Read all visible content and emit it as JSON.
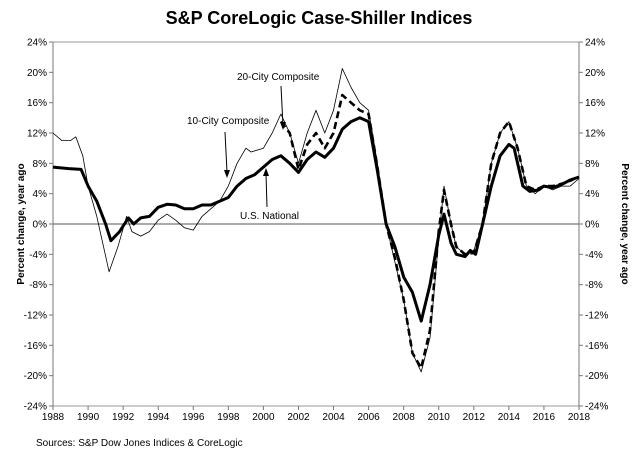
{
  "chart_data": {
    "type": "line",
    "title": "S&P CoreLogic Case-Shiller Indices",
    "ylabel_left": "Percent change, year ago",
    "ylabel_right": "Percent change, year ago",
    "source": "Sources: S&P Dow Jones Indices & CoreLogic",
    "xlim": [
      1988,
      2018
    ],
    "ylim": [
      -24,
      24
    ],
    "x_ticks": [
      "1988",
      "1990",
      "1992",
      "1994",
      "1996",
      "1998",
      "2000",
      "2002",
      "2004",
      "2006",
      "2008",
      "2010",
      "2012",
      "2014",
      "2016",
      "2018"
    ],
    "y_ticks": [
      "24%",
      "20%",
      "16%",
      "12%",
      "8%",
      "4%",
      "0%",
      "-4%",
      "-8%",
      "-12%",
      "-16%",
      "-20%",
      "-24%"
    ],
    "grid": false,
    "annotations": [
      "20-City Composite",
      "10-City Composite",
      "U.S. National"
    ],
    "series": [
      {
        "name": "U.S. National",
        "style": "thick-solid",
        "points": [
          [
            1988,
            7.5
          ],
          [
            1988.9,
            7.3
          ],
          [
            1989.6,
            7.2
          ],
          [
            1990,
            5
          ],
          [
            1990.5,
            3
          ],
          [
            1991,
            0
          ],
          [
            1991.3,
            -2.2
          ],
          [
            1991.8,
            -1
          ],
          [
            1992.3,
            0.8
          ],
          [
            1992.6,
            0
          ],
          [
            1993,
            0.8
          ],
          [
            1993.5,
            1
          ],
          [
            1994,
            2.2
          ],
          [
            1994.5,
            2.6
          ],
          [
            1995,
            2.5
          ],
          [
            1995.5,
            2
          ],
          [
            1996,
            2
          ],
          [
            1996.5,
            2.5
          ],
          [
            1997,
            2.5
          ],
          [
            1997.5,
            3
          ],
          [
            1998,
            3.5
          ],
          [
            1998.5,
            5
          ],
          [
            1999,
            6
          ],
          [
            1999.5,
            6.5
          ],
          [
            2000,
            7.5
          ],
          [
            2000.5,
            8.5
          ],
          [
            2001,
            9
          ],
          [
            2001.5,
            8
          ],
          [
            2002,
            6.8
          ],
          [
            2002.5,
            8.5
          ],
          [
            2003,
            9.5
          ],
          [
            2003.5,
            8.8
          ],
          [
            2004,
            10
          ],
          [
            2004.5,
            12.5
          ],
          [
            2005,
            13.5
          ],
          [
            2005.5,
            14
          ],
          [
            2006,
            13.5
          ],
          [
            2006.5,
            7
          ],
          [
            2007,
            0
          ],
          [
            2007.5,
            -3
          ],
          [
            2008,
            -7
          ],
          [
            2008.5,
            -9
          ],
          [
            2009,
            -12.8
          ],
          [
            2009.5,
            -8
          ],
          [
            2010,
            -1.5
          ],
          [
            2010.3,
            1.3
          ],
          [
            2010.7,
            -2.5
          ],
          [
            2011,
            -4
          ],
          [
            2011.5,
            -4.3
          ],
          [
            2011.8,
            -3.5
          ],
          [
            2012.1,
            -4
          ],
          [
            2012.5,
            0
          ],
          [
            2013,
            5
          ],
          [
            2013.5,
            9
          ],
          [
            2014,
            10.5
          ],
          [
            2014.3,
            10
          ],
          [
            2014.8,
            5
          ],
          [
            2015.2,
            4.3
          ],
          [
            2015.7,
            4.5
          ],
          [
            2016,
            5
          ],
          [
            2016.5,
            4.8
          ],
          [
            2017,
            5.2
          ],
          [
            2017.5,
            5.8
          ],
          [
            2018,
            6.2
          ]
        ]
      },
      {
        "name": "10-City Composite",
        "style": "thin-solid",
        "points": [
          [
            1988,
            12
          ],
          [
            1988.5,
            11
          ],
          [
            1989,
            11
          ],
          [
            1989.3,
            11.5
          ],
          [
            1989.7,
            9
          ],
          [
            1990,
            5
          ],
          [
            1990.5,
            1
          ],
          [
            1991.2,
            -6.3
          ],
          [
            1991.7,
            -3
          ],
          [
            1992.2,
            1
          ],
          [
            1992.5,
            -1
          ],
          [
            1993,
            -1.6
          ],
          [
            1993.5,
            -1
          ],
          [
            1994,
            0.5
          ],
          [
            1994.5,
            1.3
          ],
          [
            1995,
            0.5
          ],
          [
            1995.5,
            -0.5
          ],
          [
            1996,
            -0.8
          ],
          [
            1996.5,
            1
          ],
          [
            1997,
            2
          ],
          [
            1997.5,
            3
          ],
          [
            1998,
            5
          ],
          [
            1998.5,
            8
          ],
          [
            1999,
            10
          ],
          [
            1999.3,
            9.5
          ],
          [
            2000,
            10
          ],
          [
            2000.5,
            12
          ],
          [
            2001,
            14.5
          ],
          [
            2001.5,
            12
          ],
          [
            2002,
            8
          ],
          [
            2002.5,
            12
          ],
          [
            2003,
            15
          ],
          [
            2003.5,
            12
          ],
          [
            2004,
            15
          ],
          [
            2004.5,
            20.5
          ],
          [
            2005,
            18
          ],
          [
            2005.5,
            16
          ],
          [
            2006,
            15
          ],
          [
            2006.5,
            8
          ],
          [
            2007,
            0
          ],
          [
            2007.5,
            -5
          ],
          [
            2008,
            -10
          ],
          [
            2008.5,
            -17
          ],
          [
            2009,
            -19.5
          ],
          [
            2009.5,
            -15
          ],
          [
            2010,
            -2
          ],
          [
            2010.3,
            5
          ],
          [
            2010.7,
            0
          ],
          [
            2011,
            -3
          ],
          [
            2011.5,
            -4
          ],
          [
            2012,
            -3.5
          ],
          [
            2012.5,
            0
          ],
          [
            2013,
            8
          ],
          [
            2013.5,
            12
          ],
          [
            2014,
            13.5
          ],
          [
            2014.5,
            10
          ],
          [
            2015,
            5
          ],
          [
            2015.5,
            4
          ],
          [
            2016,
            5
          ],
          [
            2016.5,
            4.5
          ],
          [
            2017,
            5
          ],
          [
            2017.5,
            5
          ],
          [
            2018,
            6
          ]
        ]
      },
      {
        "name": "20-City Composite",
        "style": "thick-dashed",
        "points": [
          [
            2001,
            13.5
          ],
          [
            2001.5,
            12
          ],
          [
            2002,
            7.2
          ],
          [
            2002.5,
            10.5
          ],
          [
            2003,
            12
          ],
          [
            2003.5,
            10
          ],
          [
            2004,
            12
          ],
          [
            2004.5,
            17
          ],
          [
            2005,
            16
          ],
          [
            2005.5,
            15
          ],
          [
            2006,
            14.5
          ],
          [
            2006.5,
            7.5
          ],
          [
            2007,
            0
          ],
          [
            2007.5,
            -4.5
          ],
          [
            2008,
            -10
          ],
          [
            2008.5,
            -17
          ],
          [
            2009,
            -19
          ],
          [
            2009.5,
            -14
          ],
          [
            2010,
            -1
          ],
          [
            2010.3,
            4.5
          ],
          [
            2010.7,
            0
          ],
          [
            2011,
            -3
          ],
          [
            2011.5,
            -4
          ],
          [
            2012,
            -3.8
          ],
          [
            2012.5,
            0
          ],
          [
            2013,
            8
          ],
          [
            2013.5,
            12
          ],
          [
            2014,
            13.5
          ],
          [
            2014.5,
            10
          ],
          [
            2015,
            5
          ],
          [
            2015.5,
            4.5
          ],
          [
            2016,
            5
          ],
          [
            2016.5,
            5
          ],
          [
            2017,
            5.3
          ],
          [
            2017.5,
            5.7
          ],
          [
            2018,
            6.3
          ]
        ]
      }
    ]
  }
}
